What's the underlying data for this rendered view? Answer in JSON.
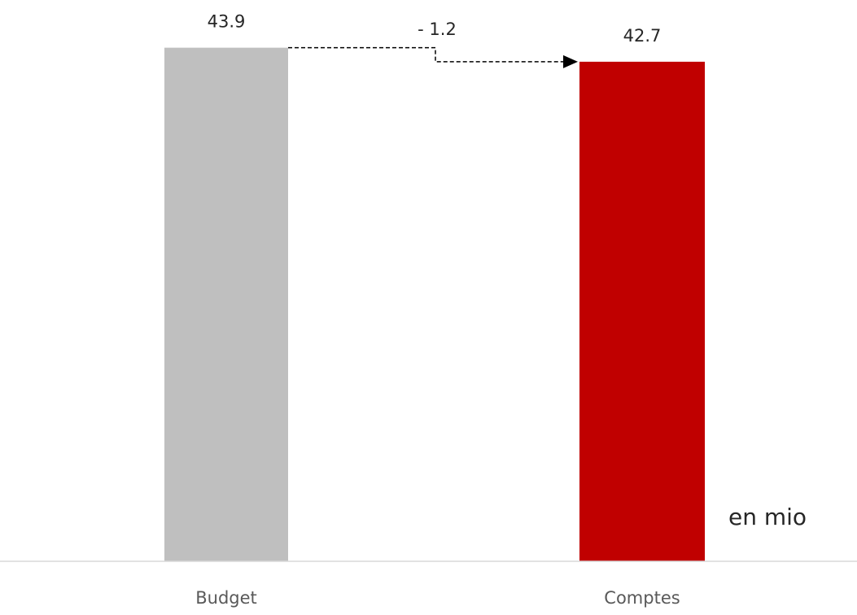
{
  "chart_data": {
    "type": "bar",
    "categories": [
      "Budget",
      "Comptes"
    ],
    "values": [
      43.9,
      42.7
    ],
    "value_labels": [
      "43.9",
      "42.7"
    ],
    "delta_label": "- 1.2",
    "unit_label": "en mio",
    "ylim": [
      0,
      44.5
    ],
    "grid": false,
    "legend": "none",
    "colors": [
      "#bfbfbf",
      "#c00000"
    ],
    "axis_color": "#d9d9d9",
    "connector_color": "#000000"
  }
}
